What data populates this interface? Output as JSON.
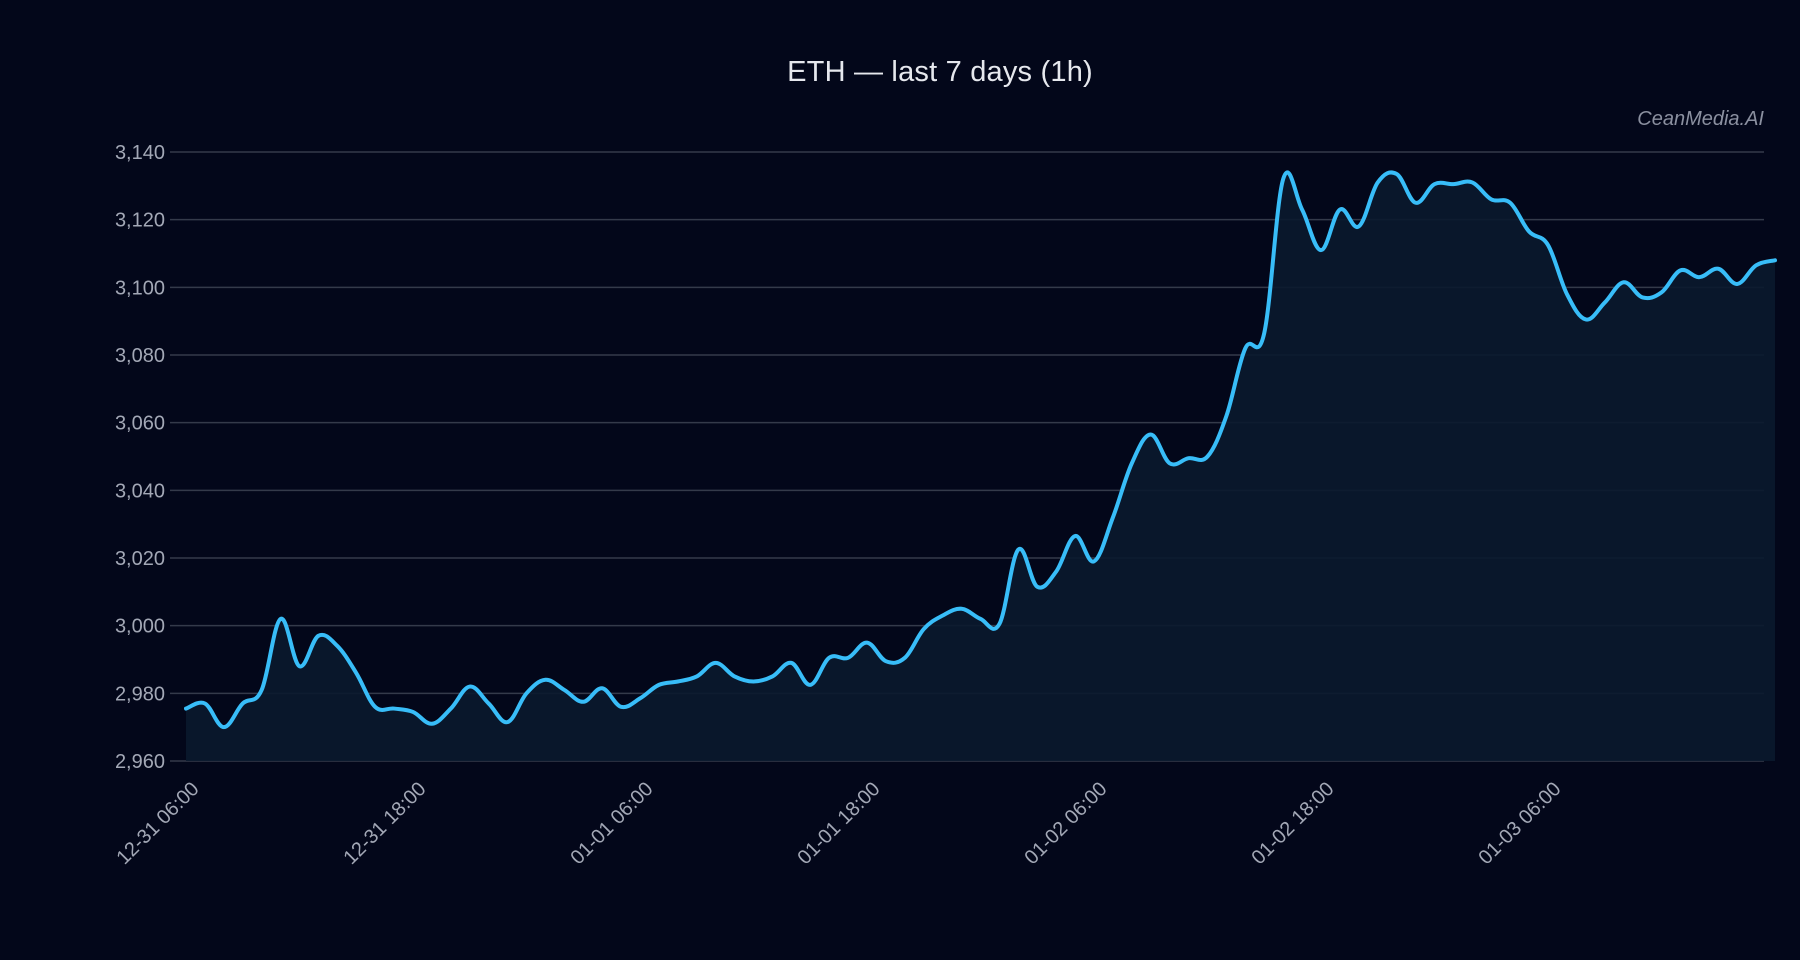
{
  "title": "ETH — last 7 days (1h)",
  "watermark": "CeanMedia.AI",
  "colors": {
    "background": "#03071a",
    "line": "#38bdf8",
    "fill": "#0a1a2e",
    "grid": "#343a4a",
    "tick_text": "#a3a8b6"
  },
  "chart_data": {
    "type": "area",
    "title": "ETH — last 7 days (1h)",
    "xlabel": "",
    "ylabel": "",
    "ylim": [
      2960,
      3140
    ],
    "yticks": [
      2960,
      2980,
      3000,
      3020,
      3040,
      3060,
      3080,
      3100,
      3120,
      3140
    ],
    "ytick_labels": [
      "2,960",
      "2,980",
      "3,000",
      "3,020",
      "3,040",
      "3,060",
      "3,080",
      "3,100",
      "3,120",
      "3,140"
    ],
    "xtick_labels": [
      "12-31 06:00",
      "12-31 18:00",
      "01-01 06:00",
      "01-01 18:00",
      "01-02 06:00",
      "01-02 18:00",
      "01-03 06:00"
    ],
    "xtick_hours": [
      0,
      12,
      24,
      36,
      48,
      60,
      72
    ],
    "grid": true,
    "legend": null,
    "x_start": "12-31 06:00",
    "x_step": "1h",
    "series": [
      {
        "name": "ETH",
        "values": [
          2975.5,
          2977,
          2970,
          2977,
          2981,
          3002,
          2988,
          2997,
          2994,
          2986,
          2976,
          2975.5,
          2974.5,
          2971,
          2975.5,
          2982,
          2977,
          2971.5,
          2980,
          2984,
          2981,
          2977.5,
          2981.5,
          2976,
          2978.5,
          2982.5,
          2983.5,
          2985,
          2989,
          2985,
          2983.5,
          2985,
          2989,
          2982.5,
          2990.5,
          2990.5,
          2995,
          2989.5,
          2990.5,
          2999,
          3003,
          3005,
          3002,
          3000.5,
          3022.5,
          3011.5,
          3016,
          3026.5,
          3019,
          3032,
          3048,
          3056.5,
          3048,
          3049.5,
          3050,
          3062,
          3082,
          3086.5,
          3132,
          3123,
          3111,
          3123,
          3118,
          3131,
          3133.5,
          3125,
          3130.5,
          3130.5,
          3131,
          3126,
          3125,
          3116.5,
          3112.5,
          3098,
          3090.5,
          3095.5,
          3101.5,
          3097,
          3098.5,
          3105,
          3103,
          3105.5,
          3101,
          3106.5,
          3108
        ]
      }
    ]
  }
}
